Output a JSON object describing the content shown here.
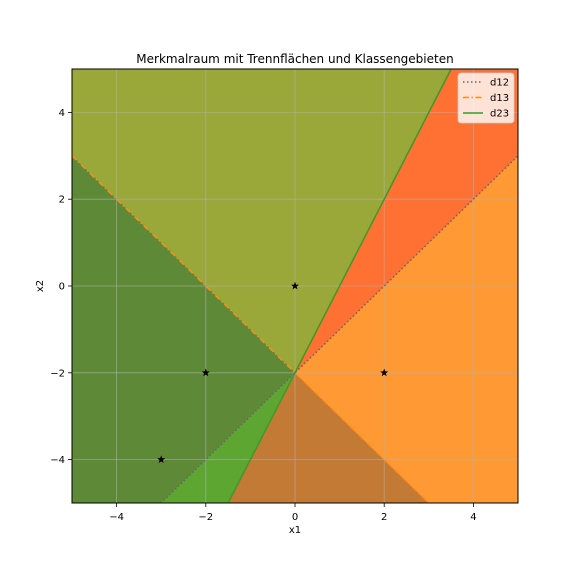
{
  "chart_data": {
    "type": "scatter",
    "title": "Merkmalraum mit Trennflächen und Klassengebieten",
    "xlabel": "x1",
    "ylabel": "x2",
    "xlim": [
      -5,
      5
    ],
    "ylim": [
      -5,
      5
    ],
    "xticks": [
      -4,
      -2,
      0,
      2,
      4
    ],
    "yticks": [
      -4,
      -2,
      0,
      2,
      4
    ],
    "grid": true,
    "legend_position": "top-right",
    "regions": [
      {
        "color": "#9aa839",
        "polygon": [
          [
            -5,
            5
          ],
          [
            3.5,
            5
          ],
          [
            0,
            -2
          ],
          [
            -5,
            3
          ]
        ]
      },
      {
        "color": "#5e8a38",
        "polygon": [
          [
            -5,
            3
          ],
          [
            0,
            -2
          ],
          [
            -3,
            -5
          ],
          [
            -5,
            -5
          ]
        ]
      },
      {
        "color": "#5ea632",
        "polygon": [
          [
            0,
            -2
          ],
          [
            -1.5,
            -5
          ],
          [
            -3,
            -5
          ]
        ]
      },
      {
        "color": "#c37a35",
        "polygon": [
          [
            0,
            -2
          ],
          [
            3,
            -5
          ],
          [
            -1.5,
            -5
          ]
        ]
      },
      {
        "color": "#ff9933",
        "polygon": [
          [
            0,
            -2
          ],
          [
            5,
            3
          ],
          [
            5,
            -5
          ],
          [
            3,
            -5
          ]
        ]
      },
      {
        "color": "#ff7033",
        "polygon": [
          [
            0,
            -2
          ],
          [
            3.5,
            5
          ],
          [
            5,
            5
          ],
          [
            5,
            3
          ]
        ]
      }
    ],
    "series": [
      {
        "name": "d12",
        "type": "line",
        "style": "dotted",
        "color": "#666666",
        "x": [
          -5,
          5
        ],
        "y": [
          -7,
          3
        ]
      },
      {
        "name": "d13",
        "type": "line",
        "style": "dashdot",
        "color": "#ff8c1a",
        "x": [
          -5,
          5
        ],
        "y": [
          3,
          -7
        ]
      },
      {
        "name": "d23",
        "type": "line",
        "style": "solid",
        "color": "#3a9a2a",
        "x": [
          -1.5,
          3.5
        ],
        "y": [
          -5,
          5
        ]
      }
    ],
    "points": {
      "marker": "star",
      "color": "#000000",
      "x": [
        0,
        -2,
        -3,
        2
      ],
      "y": [
        0,
        -2,
        -4,
        -2
      ]
    }
  }
}
